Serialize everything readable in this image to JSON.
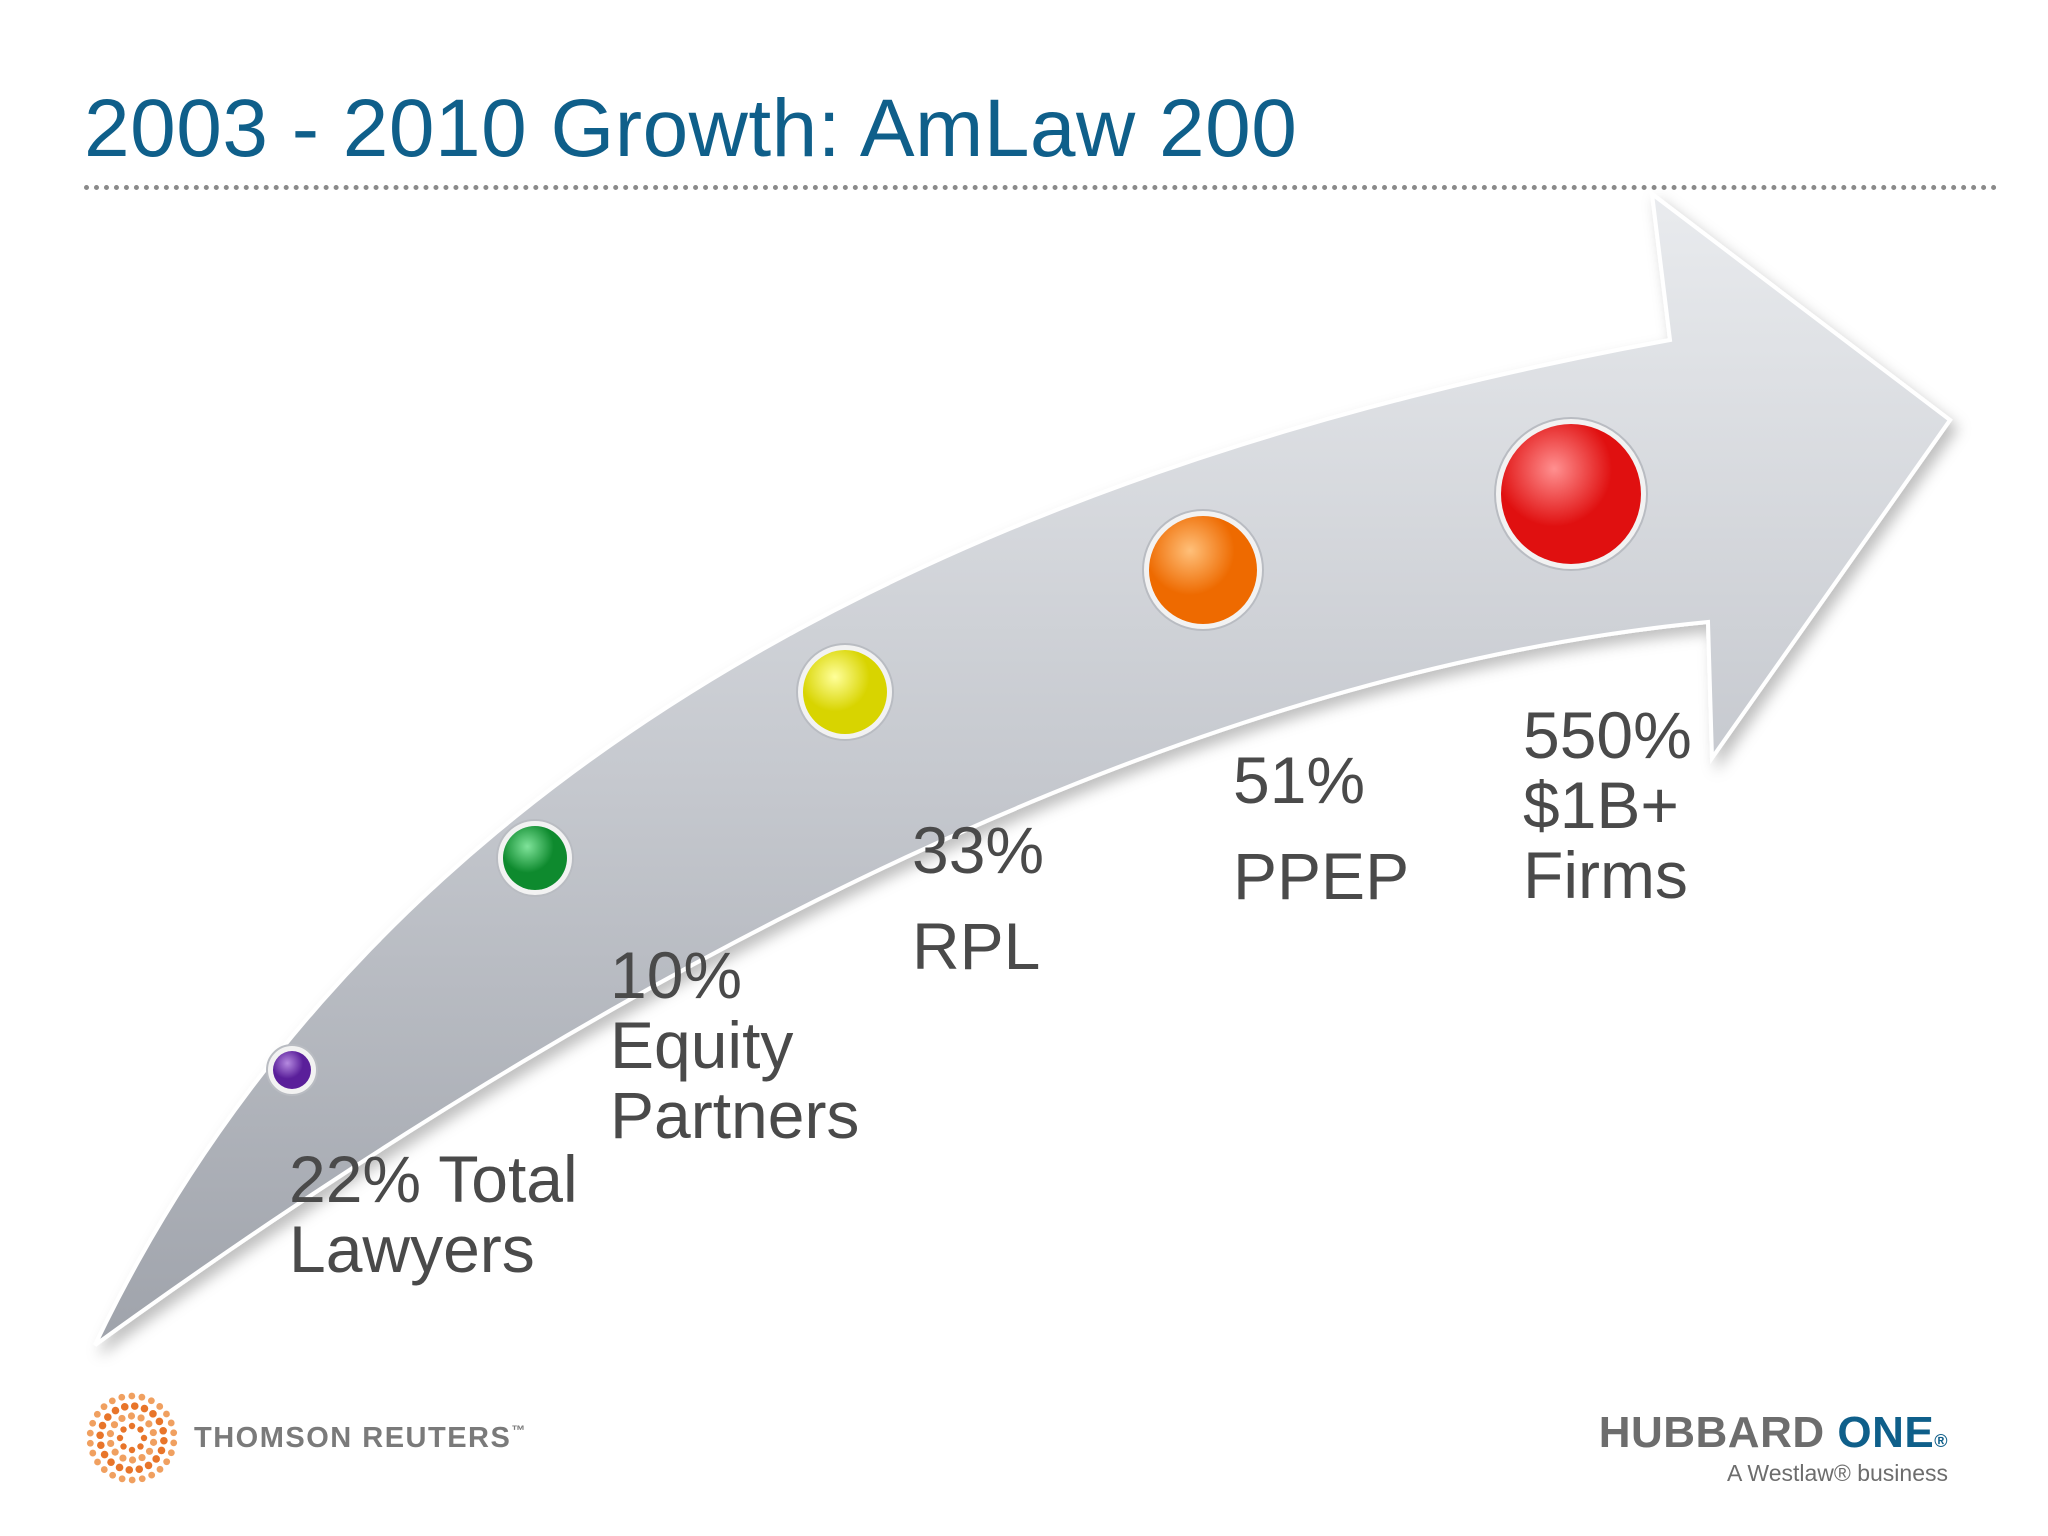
{
  "slide": {
    "title": "2003 - 2010 Growth: AmLaw 200"
  },
  "milestones": [
    {
      "lines": [
        "22% Total",
        "Lawyers"
      ],
      "dot_color": "#5a1f9a",
      "dot_highlight": "#b58ae0"
    },
    {
      "lines": [
        "10%",
        "Equity",
        "Partners"
      ],
      "dot_color": "#0e8a2e",
      "dot_highlight": "#7fe39a"
    },
    {
      "lines": [
        "33%",
        "RPL"
      ],
      "dot_color": "#d8d400",
      "dot_highlight": "#ffff9a"
    },
    {
      "lines": [
        "51%",
        "PPEP"
      ],
      "dot_color": "#ee6a00",
      "dot_highlight": "#ffc07a"
    },
    {
      "lines": [
        "550%",
        "$1B+",
        "Firms"
      ],
      "dot_color": "#e01010",
      "dot_highlight": "#ff9090"
    }
  ],
  "footer": {
    "left_logo_text": "THOMSON REUTERS",
    "left_logo_tm": "™",
    "right_logo_main": "HUBBARD",
    "right_logo_accent": "ONE",
    "right_logo_reg": "®",
    "right_logo_sub": "A Westlaw® business"
  },
  "colors": {
    "title": "#0f5f8a",
    "arrow_fill": "#c8cbd1",
    "label_text": "#4a4a4a"
  }
}
